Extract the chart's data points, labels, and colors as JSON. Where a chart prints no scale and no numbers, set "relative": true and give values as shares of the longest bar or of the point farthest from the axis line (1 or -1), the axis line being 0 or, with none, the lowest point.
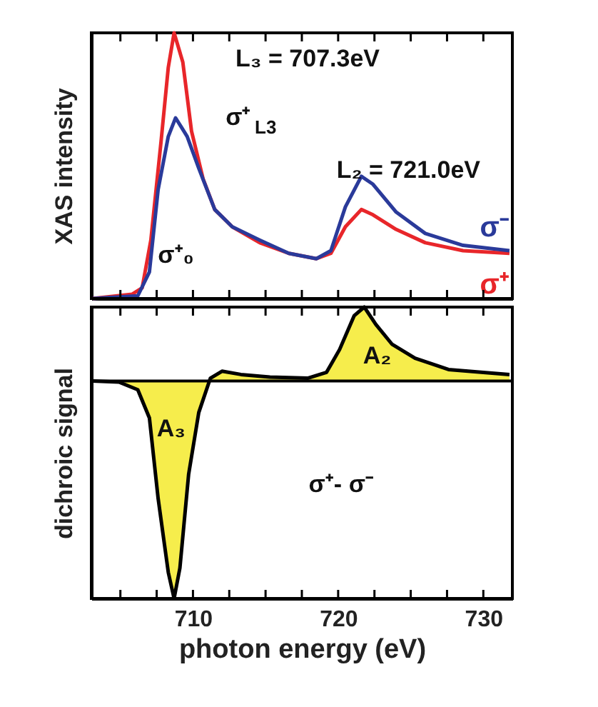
{
  "chart_data": [
    {
      "type": "line",
      "relative": true,
      "ylabel": "XAS intensity",
      "xlim": [
        703,
        732
      ],
      "tick_labels": false,
      "xticks": [
        {
          "value": 705,
          "label": null
        },
        {
          "value": 707.5,
          "label": null
        },
        {
          "value": 710,
          "label": null
        },
        {
          "value": 712.5,
          "label": null
        },
        {
          "value": 715,
          "label": null
        },
        {
          "value": 717.5,
          "label": null
        },
        {
          "value": 720,
          "label": null
        },
        {
          "value": 722.5,
          "label": null
        },
        {
          "value": 725,
          "label": null
        },
        {
          "value": 727.5,
          "label": null
        },
        {
          "value": 730,
          "label": null
        }
      ],
      "series": [
        {
          "name": "σ⁺",
          "color": "#e8262a",
          "x": [
            703.1,
            705.8,
            706.5,
            707.1,
            707.8,
            708.3,
            708.7,
            709.3,
            709.9,
            710.7,
            711.5,
            712.7,
            714.6,
            716.6,
            718.5,
            719.5,
            720.5,
            721.6,
            722.4,
            724.0,
            726.0,
            728.6,
            731.8
          ],
          "values": [
            0,
            0.016,
            0.04,
            0.22,
            0.59,
            0.87,
            1.0,
            0.89,
            0.63,
            0.45,
            0.335,
            0.27,
            0.21,
            0.17,
            0.15,
            0.17,
            0.27,
            0.335,
            0.315,
            0.26,
            0.21,
            0.18,
            0.17
          ]
        },
        {
          "name": "σ⁻",
          "color": "#2a3a9a",
          "x": [
            703.1,
            706.2,
            707.0,
            707.6,
            708.3,
            708.8,
            709.6,
            710.4,
            711.5,
            712.7,
            714.6,
            716.6,
            718.5,
            719.5,
            720.5,
            721.6,
            722.4,
            724.0,
            726.0,
            728.6,
            731.8
          ],
          "values": [
            0,
            0.01,
            0.1,
            0.41,
            0.61,
            0.68,
            0.61,
            0.49,
            0.335,
            0.27,
            0.22,
            0.17,
            0.15,
            0.18,
            0.345,
            0.46,
            0.43,
            0.325,
            0.245,
            0.2,
            0.18
          ]
        }
      ],
      "annotations": [
        "L₃ = 707.3eV",
        "L₂ = 721.0eV",
        "σ⁺$_{L3}$",
        "σ⁺₀"
      ]
    },
    {
      "type": "area",
      "relative": true,
      "ylabel": "dichroic signal",
      "xlabel": "photon energy (eV)",
      "xlim": [
        703,
        732
      ],
      "tick_labels": "x",
      "xticks": [
        {
          "value": 705,
          "label": null
        },
        {
          "value": 707.5,
          "label": null
        },
        710,
        {
          "value": 712.5,
          "label": null
        },
        {
          "value": 715,
          "label": null
        },
        {
          "value": 717.5,
          "label": null
        },
        720,
        {
          "value": 722.5,
          "label": null
        },
        {
          "value": 725,
          "label": null
        },
        {
          "value": 727.5,
          "label": null
        },
        730
      ],
      "series": [
        {
          "color": "#f2e600",
          "x": [
            703.1,
            704.9,
            706.2,
            707.0,
            707.6,
            708.3,
            708.7,
            709.1,
            709.7,
            710.4,
            711.2,
            712.0,
            713.3,
            715.3,
            717.9,
            719.2,
            720.1,
            721.1,
            721.8,
            722.6,
            723.7,
            725.3,
            727.6,
            731.8
          ],
          "values": [
            0,
            -0.005,
            -0.04,
            -0.17,
            -0.54,
            -0.88,
            -1,
            -0.86,
            -0.43,
            -0.145,
            0.013,
            0.045,
            0.03,
            0.018,
            0.013,
            0.04,
            0.145,
            0.3,
            0.34,
            0.26,
            0.17,
            0.105,
            0.053,
            0.03
          ]
        }
      ],
      "annotations": [
        "A₃",
        "A₂",
        "σ⁺- σ⁻"
      ]
    }
  ]
}
